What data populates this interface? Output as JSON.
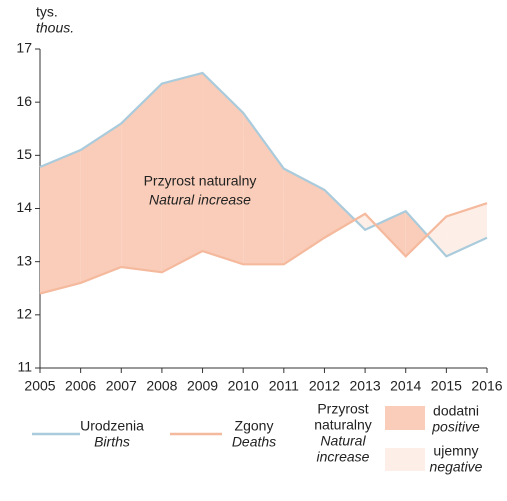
{
  "chart_data": {
    "type": "line-band",
    "y_unit": "tys.",
    "y_unit_en": "thous.",
    "annotation": "Przyrost naturalny",
    "annotation_en": "Natural increase",
    "x": [
      2005,
      2006,
      2007,
      2008,
      2009,
      2010,
      2011,
      2012,
      2013,
      2014,
      2015,
      2016
    ],
    "xlim": [
      2005,
      2016
    ],
    "ylim": [
      11,
      17
    ],
    "yticks": [
      11,
      12,
      13,
      14,
      15,
      16,
      17
    ],
    "series": [
      {
        "name": "Urodzenia",
        "name_en": "Births",
        "color": "#a9cbdc",
        "values": [
          14.78,
          15.1,
          15.6,
          16.35,
          16.55,
          15.8,
          14.75,
          14.35,
          13.6,
          13.95,
          13.1,
          13.45
        ]
      },
      {
        "name": "Zgony",
        "name_en": "Deaths",
        "color": "#f5b99d",
        "values": [
          12.4,
          12.6,
          12.9,
          12.8,
          13.2,
          12.95,
          12.95,
          13.45,
          13.9,
          13.1,
          13.85,
          14.1
        ]
      }
    ],
    "band_legend": {
      "title": [
        "Przyrost",
        "naturalny"
      ],
      "title_en": [
        "Natural",
        "increase"
      ],
      "positive": "dodatni",
      "positive_en": "positive",
      "positive_color": "#f9cdb9",
      "negative": "ujemny",
      "negative_en": "negative",
      "negative_color": "#fdefe7"
    }
  }
}
